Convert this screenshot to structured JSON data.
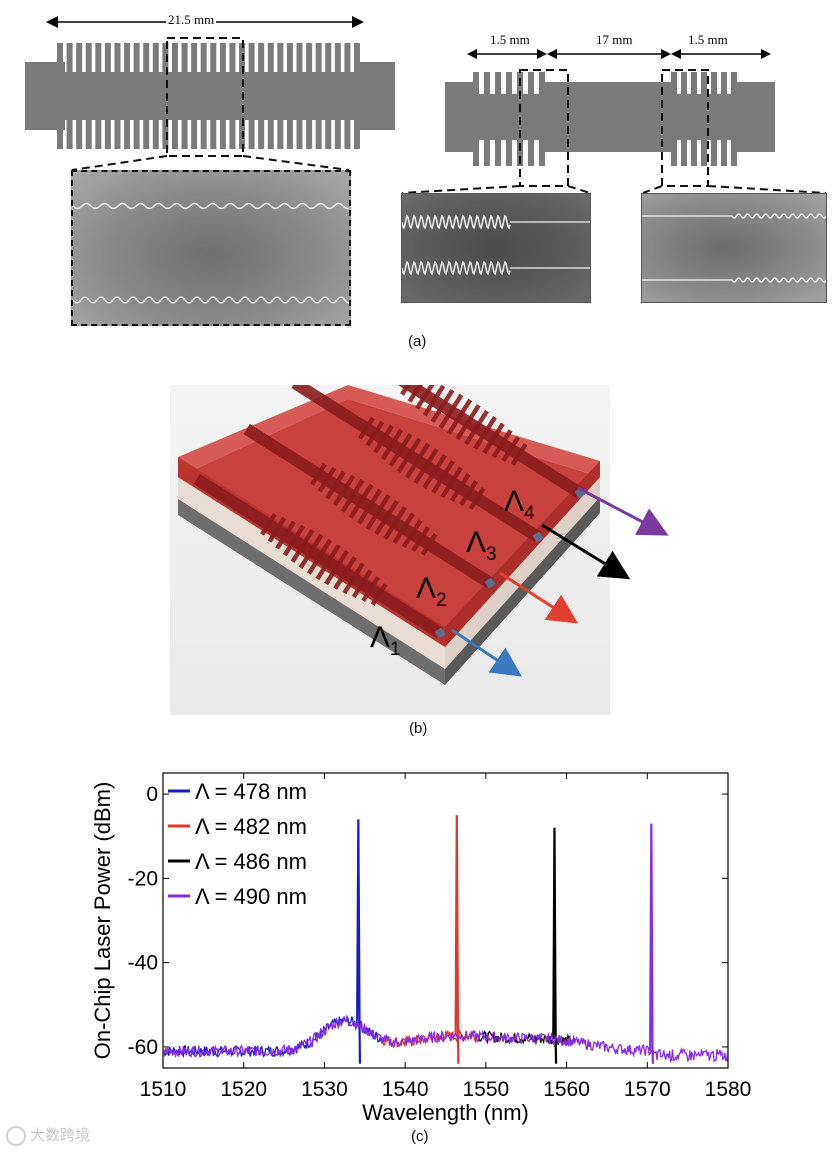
{
  "panel_a": {
    "label": "(a)",
    "left_dimension": "21.5 mm",
    "right_dimensions": [
      "1.5 mm",
      "17 mm",
      "1.5 mm"
    ]
  },
  "panel_b": {
    "label": "(b)",
    "gratings": [
      {
        "symbol": "Λ",
        "sub": "1",
        "arrow_color": "#3a78bf"
      },
      {
        "symbol": "Λ",
        "sub": "2",
        "arrow_color": "#e2402f"
      },
      {
        "symbol": "Λ",
        "sub": "3",
        "arrow_color": "#000000"
      },
      {
        "symbol": "Λ",
        "sub": "4",
        "arrow_color": "#7a3aa0"
      }
    ]
  },
  "panel_c": {
    "label": "(c)",
    "chart_data": {
      "type": "line",
      "title": "",
      "xlabel": "Wavelength (nm)",
      "ylabel": "On-Chip Laser Power (dBm)",
      "xlim": [
        1510,
        1580
      ],
      "ylim": [
        -65,
        5
      ],
      "xticks": [
        1510,
        1520,
        1530,
        1540,
        1550,
        1560,
        1570,
        1580
      ],
      "yticks": [
        0,
        -20,
        -40,
        -60
      ],
      "legend_position": "top-left",
      "series": [
        {
          "name": "Λ = 478 nm",
          "color": "#1a1acc",
          "peak_wavelength": 1534.2,
          "peak_power": -6,
          "baseline_span": [
            1510,
            1537
          ]
        },
        {
          "name": "Λ = 482 nm",
          "color": "#e0392b",
          "peak_wavelength": 1546.4,
          "peak_power": -5,
          "baseline_span": [
            1537,
            1549
          ]
        },
        {
          "name": "Λ = 486 nm",
          "color": "#000000",
          "peak_wavelength": 1558.5,
          "peak_power": -8,
          "baseline_span": [
            1549,
            1561
          ]
        },
        {
          "name": "Λ = 490 nm",
          "color": "#8a2be2",
          "peak_wavelength": 1570.5,
          "peak_power": -7,
          "baseline_span": [
            1510,
            1580
          ]
        }
      ]
    }
  },
  "watermark": {
    "text": "大数跨境"
  }
}
